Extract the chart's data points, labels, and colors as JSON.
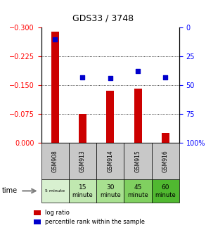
{
  "title": "GDS33 / 3748",
  "samples": [
    "GSM908",
    "GSM913",
    "GSM914",
    "GSM915",
    "GSM916"
  ],
  "log_ratios": [
    -0.29,
    -0.075,
    -0.135,
    -0.14,
    -0.025
  ],
  "percentile_ranks": [
    10,
    43,
    44,
    38,
    43
  ],
  "ylim_left": [
    -0.3,
    0
  ],
  "ylim_right": [
    0,
    100
  ],
  "yticks_left": [
    0,
    -0.075,
    -0.15,
    -0.225,
    -0.3
  ],
  "yticks_right": [
    0,
    25,
    50,
    75,
    100
  ],
  "ytick_right_labels": [
    "0",
    "25",
    "50",
    "75",
    "100%"
  ],
  "bar_color": "#cc0000",
  "dot_color": "#0000cc",
  "time_labels_line1": [
    "5 minute",
    "15",
    "30",
    "45",
    "60"
  ],
  "time_labels_line2": [
    "",
    "minute",
    "minute",
    "minute",
    "minute"
  ],
  "time_colors": [
    "#d8f0d0",
    "#c0e8b0",
    "#a8e090",
    "#80d060",
    "#50b830"
  ],
  "gsm_bg_color": "#c8c8c8",
  "legend_log_ratio": "log ratio",
  "legend_percentile": "percentile rank within the sample",
  "time_label": "time"
}
